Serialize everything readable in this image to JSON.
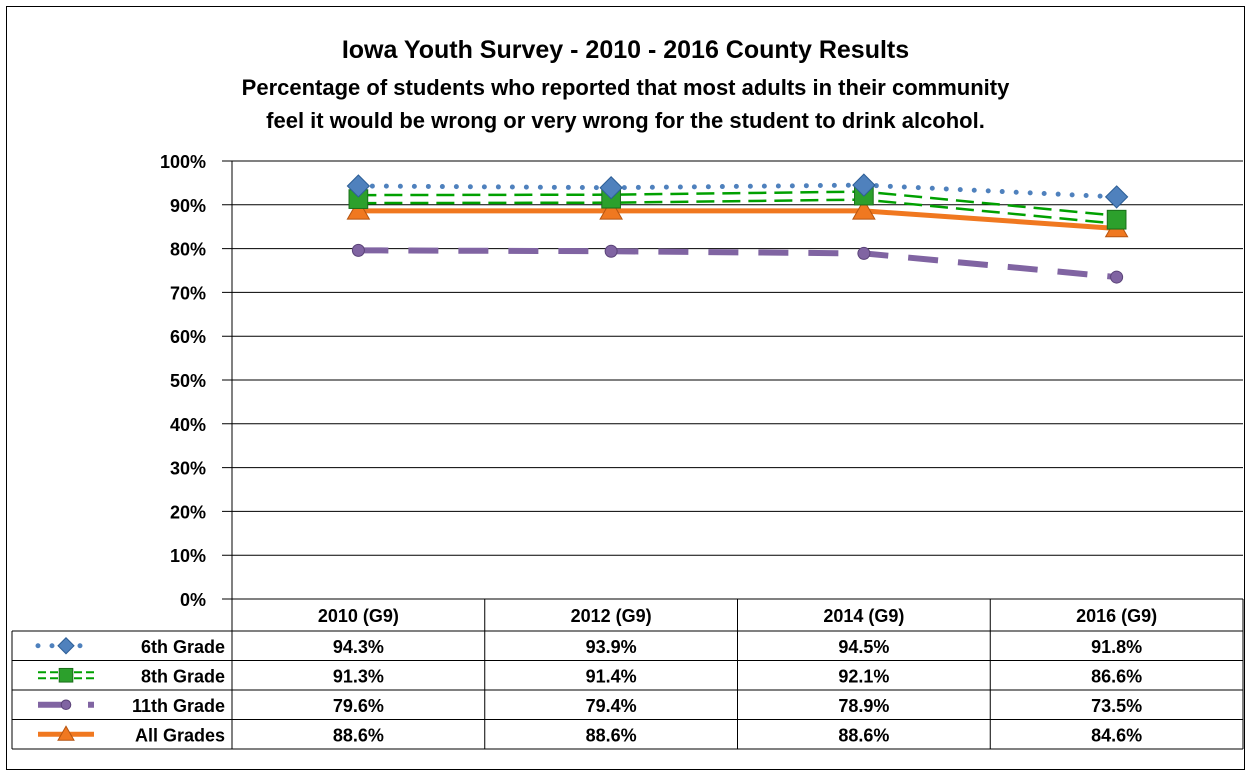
{
  "chart_data": {
    "type": "line",
    "title": "Iowa Youth Survey - 2010 - 2016 County Results",
    "subtitle_line1": "Percentage of students who reported that most adults in their community",
    "subtitle_line2": "feel it would be wrong or very wrong for the student to drink alcohol.",
    "categories": [
      "2010 (G9)",
      "2012 (G9)",
      "2014 (G9)",
      "2016 (G9)"
    ],
    "ylim": [
      0,
      100
    ],
    "yticks": [
      "0%",
      "10%",
      "20%",
      "30%",
      "40%",
      "50%",
      "60%",
      "70%",
      "80%",
      "90%",
      "100%"
    ],
    "grid": true,
    "legend": "data-table",
    "series": [
      {
        "name": "6th Grade",
        "values": [
          94.3,
          93.9,
          94.5,
          91.8
        ],
        "labels": [
          "94.3%",
          "93.9%",
          "94.5%",
          "91.8%"
        ],
        "color": "#4F81BD",
        "style": "dotted",
        "marker": "diamond"
      },
      {
        "name": "8th Grade",
        "values": [
          91.3,
          91.4,
          92.1,
          86.6
        ],
        "labels": [
          "91.3%",
          "91.4%",
          "92.1%",
          "86.6%"
        ],
        "color": "#00A000",
        "style": "double-dash",
        "marker": "square"
      },
      {
        "name": "11th Grade",
        "values": [
          79.6,
          79.4,
          78.9,
          73.5
        ],
        "labels": [
          "79.6%",
          "79.4%",
          "78.9%",
          "73.5%"
        ],
        "color": "#8064A2",
        "style": "long-dash",
        "marker": "circle"
      },
      {
        "name": "All Grades",
        "values": [
          88.6,
          88.6,
          88.6,
          84.6
        ],
        "labels": [
          "88.6%",
          "88.6%",
          "88.6%",
          "84.6%"
        ],
        "color": "#F07820",
        "style": "solid",
        "marker": "triangle"
      }
    ]
  }
}
